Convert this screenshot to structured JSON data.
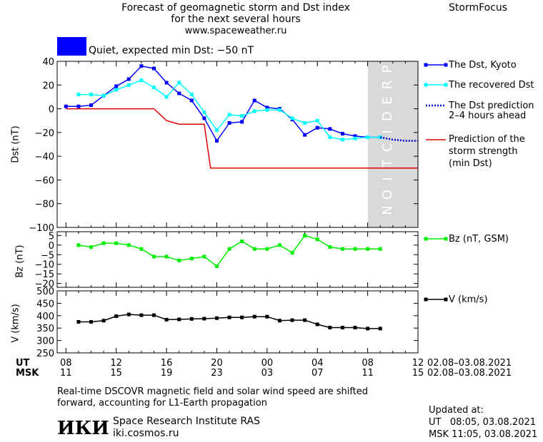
{
  "header": {
    "title_line1": "Forecast of geomagnetic storm and Dst index",
    "title_line2": "for the next several hours",
    "website": "www.spaceweather.ru",
    "brand": "StormFocus"
  },
  "status": {
    "color": "#0000ff",
    "text": "Quiet, expected min Dst: −50 nT"
  },
  "prediction_label": "PREDICTION",
  "time_axis": {
    "ut_label": "UT",
    "msk_label": "MSK",
    "ut_ticks": [
      "08",
      "12",
      "16",
      "20",
      "00",
      "04",
      "08",
      "12"
    ],
    "msk_ticks": [
      "11",
      "15",
      "19",
      "23",
      "03",
      "07",
      "11",
      "15"
    ],
    "ut_range": "02.08–03.08.2021",
    "msk_range": "02.08–03.08.2021"
  },
  "footer": {
    "note_line1": "Real-time DSCOVR magnetic field and solar wind speed are shifted",
    "note_line2": "forward, accounting for L1-Earth propagation",
    "logo_text": "ИКИ",
    "institute": "Space Research Institute RAS",
    "site": "iki.cosmos.ru",
    "updated_label": "Updated at:",
    "updated_ut": "UT   08:05, 03.08.2021",
    "updated_msk": "MSK 11:05, 03.08.2021"
  },
  "legend": {
    "dst_kyoto": "The Dst, Kyoto",
    "recovered": "The recovered Dst",
    "prediction_l1": "The Dst prediction",
    "prediction_l2": "2–4 hours ahead",
    "strength_l1": "Prediction of the",
    "strength_l2": "storm strength",
    "strength_l3": "(min Dst)",
    "bz": "Bz (nT, GSM)",
    "v": "V (km/s)"
  },
  "chart_data": [
    {
      "type": "line",
      "ylabel": "Dst (nT)",
      "ylim": [
        -100,
        40
      ],
      "yticks": [
        -100,
        -80,
        -60,
        -40,
        -20,
        0,
        20,
        40
      ],
      "x_unit": "hours since 02.08 08 UT",
      "xlim": [
        -0.7,
        28
      ],
      "prediction_region": [
        25,
        28
      ],
      "series": [
        {
          "name": "The Dst, Kyoto",
          "color": "#0000ff",
          "x": [
            0,
            1,
            2,
            3,
            4,
            5,
            6,
            7,
            8,
            9,
            10,
            11,
            12,
            13,
            14,
            15,
            16,
            17,
            18,
            19,
            20,
            21,
            22,
            23,
            24,
            25
          ],
          "y": [
            2,
            2,
            3,
            11,
            19,
            25,
            36,
            34,
            22,
            13,
            7,
            -8,
            -27,
            -12,
            -11,
            7,
            1,
            0,
            -9,
            -22,
            -16,
            -17,
            -21,
            -23,
            -24,
            -24
          ]
        },
        {
          "name": "The recovered Dst",
          "color": "#00ffff",
          "x": [
            1,
            2,
            3,
            4,
            5,
            6,
            7,
            8,
            9,
            10,
            11,
            12,
            13,
            14,
            15,
            16,
            17,
            18,
            19,
            20,
            21,
            22,
            23,
            24,
            25
          ],
          "y": [
            12,
            12,
            11,
            16,
            20,
            24,
            18,
            10,
            22,
            12,
            -3,
            -18,
            -5,
            -6,
            -2,
            -1,
            -1,
            -8,
            -12,
            -10,
            -24,
            -26,
            -25,
            -24,
            -24
          ]
        },
        {
          "name": "The Dst prediction 2–4 hours ahead",
          "color": "#0000cc",
          "x": [
            25,
            26,
            27,
            28
          ],
          "y": [
            -24,
            -26,
            -27,
            -27
          ]
        },
        {
          "name": "Prediction of the storm strength (min Dst)",
          "color": "#dd0000",
          "x": [
            0,
            7,
            8,
            9,
            10,
            11,
            11.5,
            28
          ],
          "y": [
            0,
            0,
            -10,
            -13,
            -13,
            -13,
            -50,
            -50
          ]
        }
      ]
    },
    {
      "type": "line",
      "ylabel": "Bz (nT)",
      "ylim": [
        -22,
        7
      ],
      "yticks": [
        -20,
        -15,
        -10,
        -5,
        0,
        5
      ],
      "series": [
        {
          "name": "Bz (nT, GSM)",
          "color": "#00ee00",
          "x": [
            1,
            2,
            3,
            4,
            5,
            6,
            7,
            8,
            9,
            10,
            11,
            12,
            13,
            14,
            15,
            16,
            17,
            18,
            19,
            20,
            21,
            22,
            23,
            24,
            25
          ],
          "y": [
            0,
            -1,
            1,
            1,
            0,
            -2,
            -6,
            -6,
            -8,
            -7,
            -6,
            -11,
            -2,
            2,
            -2,
            -2,
            0,
            -4,
            5,
            3,
            -1,
            -2,
            -2,
            -2,
            -2
          ]
        }
      ]
    },
    {
      "type": "line",
      "ylabel": "V (km/s)",
      "ylim": [
        250,
        500
      ],
      "yticks": [
        250,
        300,
        350,
        400,
        450,
        500
      ],
      "series": [
        {
          "name": "V (km/s)",
          "color": "#000000",
          "x": [
            1,
            2,
            3,
            4,
            5,
            6,
            7,
            8,
            9,
            10,
            11,
            12,
            13,
            14,
            15,
            16,
            17,
            18,
            19,
            20,
            21,
            22,
            23,
            24,
            25
          ],
          "y": [
            375,
            375,
            380,
            398,
            405,
            402,
            402,
            384,
            385,
            387,
            388,
            390,
            393,
            393,
            396,
            396,
            380,
            382,
            382,
            365,
            352,
            352,
            352,
            348,
            348
          ]
        }
      ]
    }
  ]
}
